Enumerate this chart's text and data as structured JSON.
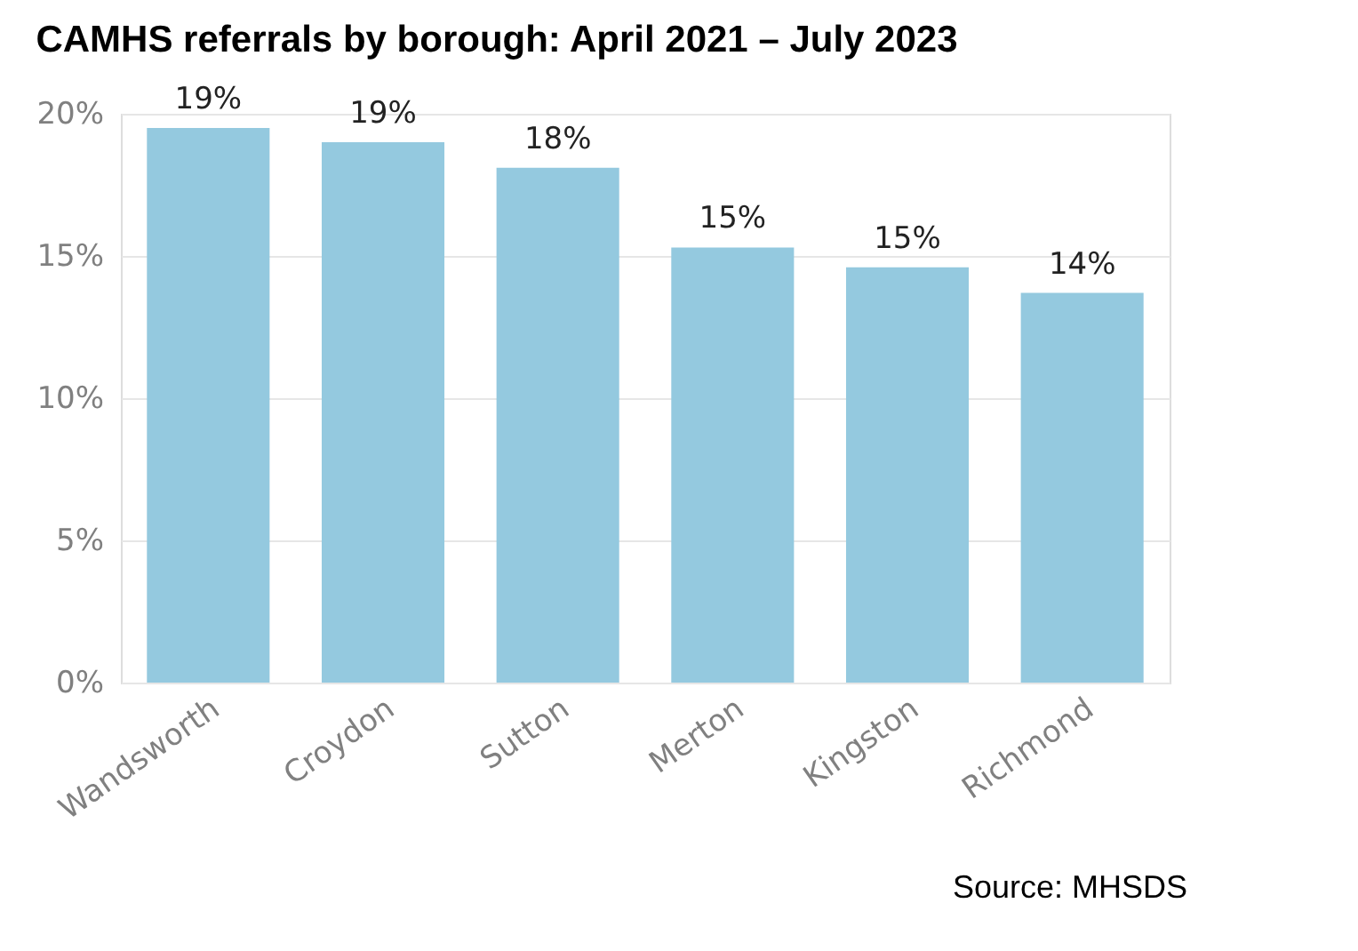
{
  "chart_data": {
    "type": "bar",
    "title": "CAMHS referrals by borough: April 2021 – July 2023",
    "categories": [
      "Wandsworth",
      "Croydon",
      "Sutton",
      "Merton",
      "Kingston",
      "Richmond"
    ],
    "values": [
      19.5,
      19.0,
      18.1,
      15.3,
      14.6,
      13.7
    ],
    "value_labels": [
      "19%",
      "19%",
      "18%",
      "15%",
      "15%",
      "14%"
    ],
    "color": "#94c9df",
    "ylim": [
      0,
      20
    ],
    "yticks": [
      {
        "value": 0,
        "label": "0%"
      },
      {
        "value": 5,
        "label": "5%"
      },
      {
        "value": 10,
        "label": "10%"
      },
      {
        "value": 15,
        "label": "15%"
      },
      {
        "value": 20,
        "label": "20%"
      }
    ],
    "grid": "y",
    "annotations": [
      "Source: MHSDS"
    ]
  }
}
